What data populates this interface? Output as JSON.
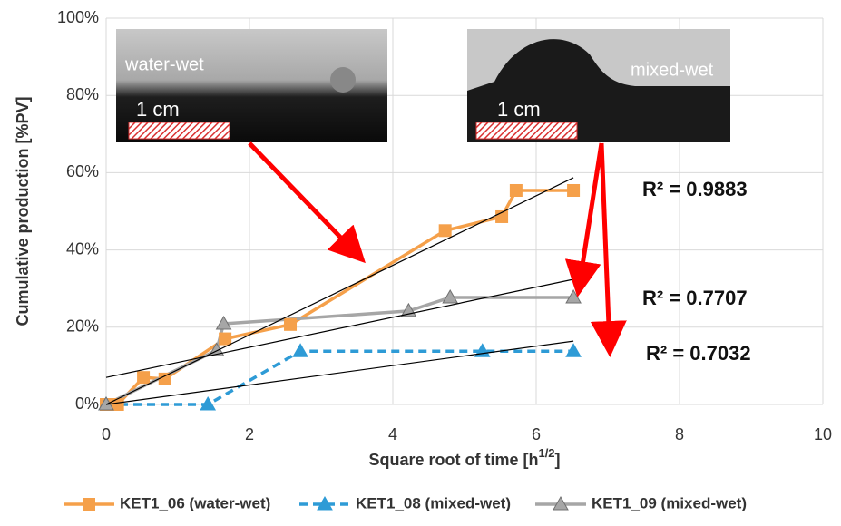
{
  "chart_data": {
    "type": "line",
    "ylabel": "Cumulative production [%PV]",
    "xlabel": {
      "text": "Square root of time [h",
      "sup": "1/2",
      "suffix": "]"
    },
    "xlim": [
      0,
      10
    ],
    "xticks": [
      0,
      2,
      4,
      6,
      8,
      10
    ],
    "ylim": [
      0,
      100
    ],
    "yticks": [
      {
        "value": 0,
        "label": "0%"
      },
      {
        "value": 20,
        "label": "20%"
      },
      {
        "value": 40,
        "label": "40%"
      },
      {
        "value": 60,
        "label": "60%"
      },
      {
        "value": 80,
        "label": "80%"
      },
      {
        "value": 100,
        "label": "100%"
      }
    ],
    "grid": true,
    "legend": "bottom",
    "series": [
      {
        "name": "KET1_06 (water-wet)",
        "color": "#f5a04a",
        "marker": "square",
        "dash": false,
        "x": [
          0,
          0.16,
          0.52,
          0.82,
          1.66,
          2.57,
          4.73,
          5.52,
          5.72,
          6.52
        ],
        "values": [
          0,
          0,
          7,
          6.6,
          17,
          20.7,
          45,
          48.6,
          55.4,
          55.4
        ]
      },
      {
        "name": "KET1_08 (mixed-wet)",
        "color": "#2e9bd6",
        "marker": "triangle",
        "dash": true,
        "x": [
          0,
          1.42,
          2.71,
          5.25,
          6.52
        ],
        "values": [
          0,
          0,
          13.8,
          13.8,
          13.8
        ]
      },
      {
        "name": "KET1_09 (mixed-wet)",
        "color": "#a6a6a6",
        "marker": "triangle",
        "dash": false,
        "x": [
          0,
          1.54,
          1.64,
          4.22,
          4.8,
          6.52
        ],
        "values": [
          0,
          14,
          20.9,
          24.2,
          27.7,
          27.7
        ]
      }
    ],
    "trendlines": [
      {
        "x": [
          0,
          6.52
        ],
        "values": [
          0,
          58.7
        ]
      },
      {
        "x": [
          0,
          6.52
        ],
        "values": [
          7,
          32.4
        ]
      },
      {
        "x": [
          0,
          6.52
        ],
        "values": [
          0,
          16.4
        ]
      }
    ],
    "annotations": [
      "R² = 0.9883",
      "R² = 0.7707",
      "R² = 0.7032"
    ],
    "insets": [
      {
        "label": "water-wet",
        "scale": "1 cm"
      },
      {
        "label": "mixed-wet",
        "scale": "1 cm"
      }
    ]
  }
}
